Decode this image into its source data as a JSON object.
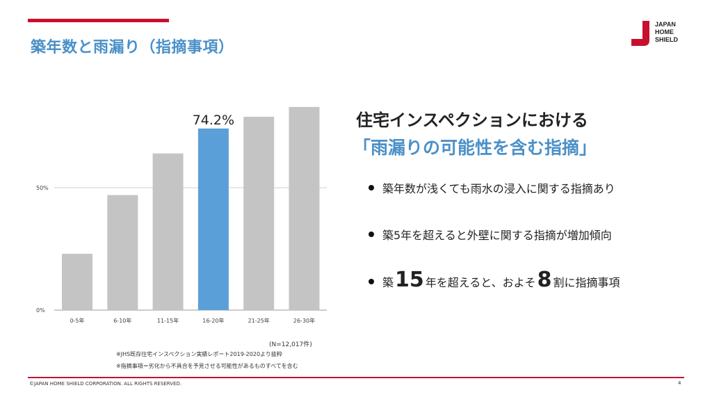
{
  "slide": {
    "title": "築年数と雨漏り（指摘事項）",
    "footer": "©JAPAN HOME SHIELD CORPORATION.  ALL RIGHTS RESERVED.",
    "page_number": "4"
  },
  "logo": {
    "line1": "JAPAN",
    "line2": "HOME",
    "line3": "SHIELD"
  },
  "colors": {
    "accent_red": "#c8102e",
    "accent_blue": "#4a90c8",
    "bar_gray": "#c4c4c4",
    "highlight_bar": "#5b9fd8"
  },
  "chart_data": {
    "type": "bar",
    "categories": [
      "0-5年",
      "6-10年",
      "11-15年",
      "16-20年",
      "21-25年",
      "26-30年"
    ],
    "values": [
      23,
      47,
      64,
      74.2,
      79,
      83
    ],
    "highlight_index": 3,
    "highlight_label": "74.2%",
    "ylim": [
      0,
      100
    ],
    "yticks": [
      {
        "value": 0,
        "label": "0%"
      },
      {
        "value": 50,
        "label": "50%"
      }
    ],
    "grid": true,
    "sample_note": "(N=12,017件)",
    "notes": [
      "※JHS既存住宅インスペクション実績レポート2019-2020より抜粋",
      "※指摘事項＝劣化から不具合を予見させる可能性があるものすべてを含む"
    ]
  },
  "right_panel": {
    "heading": "住宅インスペクションにおける",
    "subheading": "「雨漏りの可能性を含む指摘」",
    "bullet1": "築年数が浅くても雨水の浸入に関する指摘あり",
    "bullet2": "築5年を超えると外壁に関する指摘が増加傾向",
    "bullet3": {
      "part1": "築",
      "num1": "15",
      "part2": "年を超えると、およそ",
      "num2": "8",
      "part3": "割に指摘事項"
    }
  }
}
